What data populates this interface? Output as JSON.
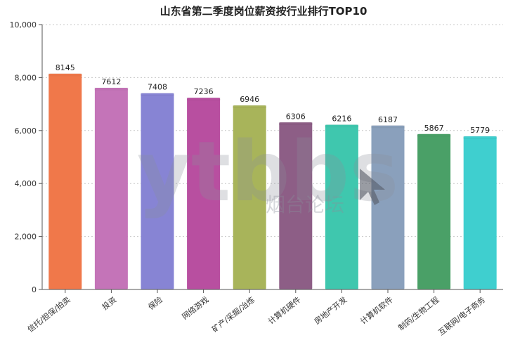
{
  "chart_data": {
    "type": "bar",
    "title": "山东省第二季度岗位薪资按行业排行TOP10",
    "categories": [
      "信托/担保/拍卖",
      "投资",
      "保险",
      "网络游戏",
      "矿产/采掘/冶炼",
      "计算机硬件",
      "房地产开发",
      "计算机软件",
      "制药/生物工程",
      "互联网/电子商务"
    ],
    "values": [
      8145,
      7612,
      7408,
      7236,
      6946,
      6306,
      6216,
      6187,
      5867,
      5779
    ],
    "ylim": [
      0,
      10000
    ],
    "yticks": [
      0,
      2000,
      4000,
      6000,
      8000,
      10000
    ],
    "ytick_labels": [
      "0",
      "2,000",
      "4,000",
      "6,000",
      "8,000",
      "10,000"
    ],
    "xlabel": "",
    "ylabel": "",
    "grid": true,
    "colors": [
      "#f0784a",
      "#c474b8",
      "#8784d4",
      "#b84fa0",
      "#a8b45a",
      "#8d5e86",
      "#3fc7ae",
      "#8aa0bc",
      "#4aa067",
      "#3fcfcf"
    ]
  },
  "watermark": {
    "brand": "ytbbs",
    "subtitle": "烟台论坛"
  }
}
